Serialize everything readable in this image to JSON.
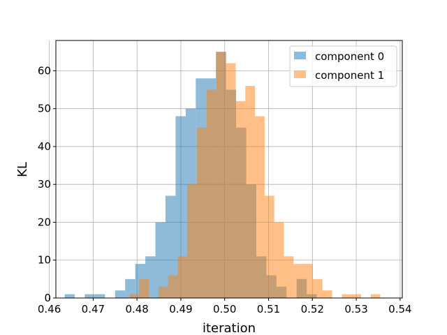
{
  "chart_data": {
    "type": "histogram",
    "title": "",
    "xlabel": "iteration",
    "ylabel": "KL",
    "xlim": [
      0.4615,
      0.5405
    ],
    "ylim": [
      0,
      68
    ],
    "x_ticks": [
      "0.46",
      "0.47",
      "0.48",
      "0.49",
      "0.50",
      "0.51",
      "0.52",
      "0.53",
      "0.54"
    ],
    "y_ticks": [
      "0",
      "10",
      "20",
      "30",
      "40",
      "50",
      "60"
    ],
    "grid": true,
    "legend_position": "top-right",
    "series": [
      {
        "name": "component 0",
        "color": "#1f77b4",
        "alpha": 0.5,
        "bins": [
          {
            "x0": 0.4635,
            "x1": 0.4658,
            "count": 1
          },
          {
            "x0": 0.4658,
            "x1": 0.4681,
            "count": 0
          },
          {
            "x0": 0.4681,
            "x1": 0.4704,
            "count": 1
          },
          {
            "x0": 0.4704,
            "x1": 0.4727,
            "count": 1
          },
          {
            "x0": 0.4727,
            "x1": 0.475,
            "count": 0
          },
          {
            "x0": 0.475,
            "x1": 0.4773,
            "count": 2
          },
          {
            "x0": 0.4773,
            "x1": 0.4796,
            "count": 5
          },
          {
            "x0": 0.4796,
            "x1": 0.4819,
            "count": 9
          },
          {
            "x0": 0.4819,
            "x1": 0.4842,
            "count": 11
          },
          {
            "x0": 0.4842,
            "x1": 0.4865,
            "count": 20
          },
          {
            "x0": 0.4865,
            "x1": 0.4888,
            "count": 27
          },
          {
            "x0": 0.4888,
            "x1": 0.4911,
            "count": 48
          },
          {
            "x0": 0.4911,
            "x1": 0.4934,
            "count": 50
          },
          {
            "x0": 0.4934,
            "x1": 0.4957,
            "count": 58
          },
          {
            "x0": 0.4957,
            "x1": 0.498,
            "count": 58
          },
          {
            "x0": 0.498,
            "x1": 0.5003,
            "count": 65
          },
          {
            "x0": 0.5003,
            "x1": 0.5026,
            "count": 55
          },
          {
            "x0": 0.5026,
            "x1": 0.5049,
            "count": 45
          },
          {
            "x0": 0.5049,
            "x1": 0.5072,
            "count": 30
          },
          {
            "x0": 0.5072,
            "x1": 0.5095,
            "count": 11
          },
          {
            "x0": 0.5095,
            "x1": 0.5118,
            "count": 6
          },
          {
            "x0": 0.5118,
            "x1": 0.5141,
            "count": 3
          },
          {
            "x0": 0.5141,
            "x1": 0.5164,
            "count": 0
          },
          {
            "x0": 0.5164,
            "x1": 0.5187,
            "count": 5
          },
          {
            "x0": 0.5187,
            "x1": 0.521,
            "count": 1
          }
        ]
      },
      {
        "name": "component 1",
        "color": "#ff7f0e",
        "alpha": 0.5,
        "bins": [
          {
            "x0": 0.4783,
            "x1": 0.4805,
            "count": 1
          },
          {
            "x0": 0.4805,
            "x1": 0.4827,
            "count": 5
          },
          {
            "x0": 0.4827,
            "x1": 0.4849,
            "count": 0
          },
          {
            "x0": 0.4849,
            "x1": 0.4871,
            "count": 3
          },
          {
            "x0": 0.4871,
            "x1": 0.4893,
            "count": 6
          },
          {
            "x0": 0.4893,
            "x1": 0.4915,
            "count": 11
          },
          {
            "x0": 0.4915,
            "x1": 0.4937,
            "count": 30
          },
          {
            "x0": 0.4937,
            "x1": 0.4959,
            "count": 45
          },
          {
            "x0": 0.4959,
            "x1": 0.4981,
            "count": 55
          },
          {
            "x0": 0.4981,
            "x1": 0.5003,
            "count": 65
          },
          {
            "x0": 0.5003,
            "x1": 0.5025,
            "count": 62
          },
          {
            "x0": 0.5025,
            "x1": 0.5047,
            "count": 52
          },
          {
            "x0": 0.5047,
            "x1": 0.5069,
            "count": 56
          },
          {
            "x0": 0.5069,
            "x1": 0.5091,
            "count": 48
          },
          {
            "x0": 0.5091,
            "x1": 0.5113,
            "count": 27
          },
          {
            "x0": 0.5113,
            "x1": 0.5135,
            "count": 20
          },
          {
            "x0": 0.5135,
            "x1": 0.5157,
            "count": 11
          },
          {
            "x0": 0.5157,
            "x1": 0.5179,
            "count": 9
          },
          {
            "x0": 0.5179,
            "x1": 0.5201,
            "count": 9
          },
          {
            "x0": 0.5201,
            "x1": 0.5223,
            "count": 5
          },
          {
            "x0": 0.5223,
            "x1": 0.5245,
            "count": 2
          },
          {
            "x0": 0.5245,
            "x1": 0.5267,
            "count": 0
          },
          {
            "x0": 0.5267,
            "x1": 0.5289,
            "count": 1
          },
          {
            "x0": 0.5289,
            "x1": 0.5311,
            "count": 1
          },
          {
            "x0": 0.5311,
            "x1": 0.5333,
            "count": 0
          },
          {
            "x0": 0.5333,
            "x1": 0.5355,
            "count": 1
          }
        ]
      }
    ]
  }
}
